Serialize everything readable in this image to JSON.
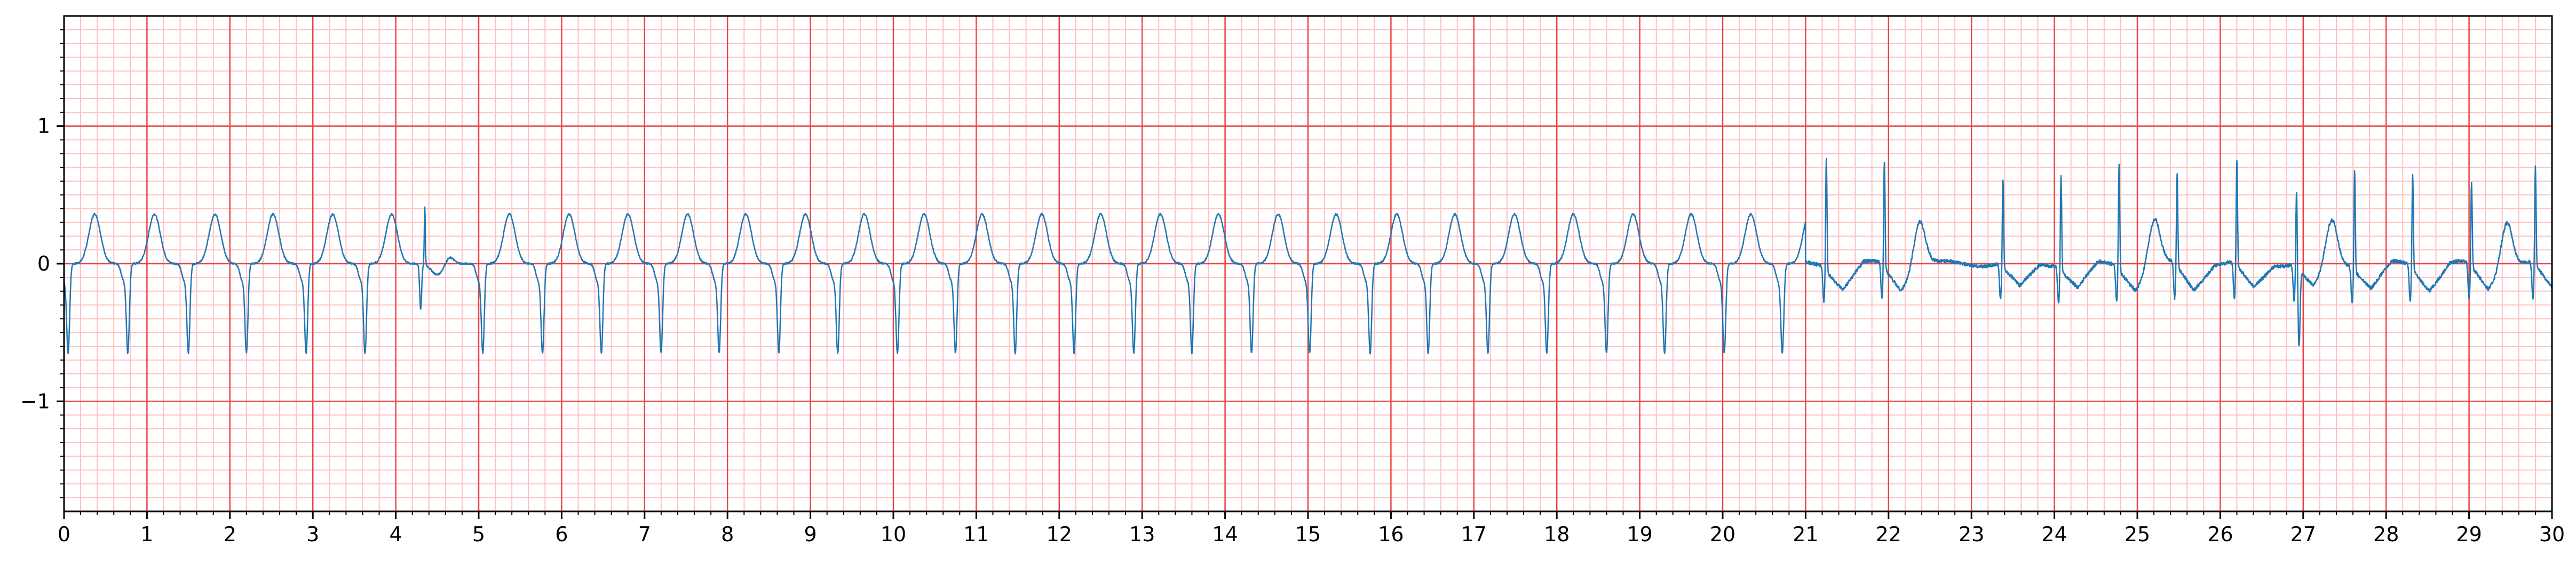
{
  "chart_data": {
    "type": "line",
    "title": "",
    "xlabel": "",
    "ylabel": "",
    "xlim": [
      0,
      30
    ],
    "ylim": [
      -1.8,
      1.8
    ],
    "x_ticks": [
      "0",
      "1",
      "2",
      "3",
      "4",
      "5",
      "6",
      "7",
      "8",
      "9",
      "10",
      "11",
      "12",
      "13",
      "14",
      "15",
      "16",
      "17",
      "18",
      "19",
      "20",
      "21",
      "22",
      "23",
      "24",
      "25",
      "26",
      "27",
      "28",
      "29",
      "30"
    ],
    "y_ticks": [
      {
        "value": 1,
        "label": "1"
      },
      {
        "value": 0,
        "label": "0"
      },
      {
        "value": -1,
        "label": "−1"
      }
    ],
    "grid": true,
    "grid_style": "ecg paper: major lines every 1 s / 1 unit, minor lines every 0.2 s / 0.1 unit",
    "colors": {
      "major_grid": "#ee4444",
      "minor_grid": "#ffc0c0",
      "signal": "#1f77b4"
    },
    "series": [
      {
        "name": "",
        "segments": [
          {
            "x_range": [
              0,
              21.0
            ],
            "beat_times": [
              0.05,
              0.77,
              1.5,
              2.2,
              2.92,
              3.63,
              5.05,
              5.77,
              6.48,
              7.2,
              7.9,
              8.62,
              9.33,
              10.05,
              10.75,
              11.47,
              12.18,
              12.9,
              13.6,
              14.32,
              15.02,
              15.75,
              16.45,
              17.17,
              17.88,
              18.6,
              19.3,
              20.02,
              20.72
            ],
            "morphology": "inverted QRS (S trough about -0.6) followed by upright T wave (about +0.35)",
            "r_peak_approx": -0.6,
            "t_peak_approx": 0.35
          },
          {
            "x_range": [
              4.0,
              4.7
            ],
            "description": "single narrow upright spike at about 4.35 (peak about 0.4, trough about -0.35) followed by a broad shallow dip"
          },
          {
            "x_range": [
              21.0,
              30.0
            ],
            "beat_times": [
              21.25,
              21.95,
              23.38,
              24.08,
              24.78,
              25.48,
              26.2,
              26.92,
              27.62,
              28.32,
              29.03,
              29.8
            ],
            "morphology": "narrow upright spikes (about +0.6 to +0.8) with baseline offsets; occasional upright T waves and downward deflections (minimum about -0.8 near 26.95)",
            "r_peak_approx": 0.75,
            "t_peak_approx": 0.3
          }
        ],
        "y_range_observed": [
          -0.8,
          0.82
        ]
      }
    ]
  }
}
